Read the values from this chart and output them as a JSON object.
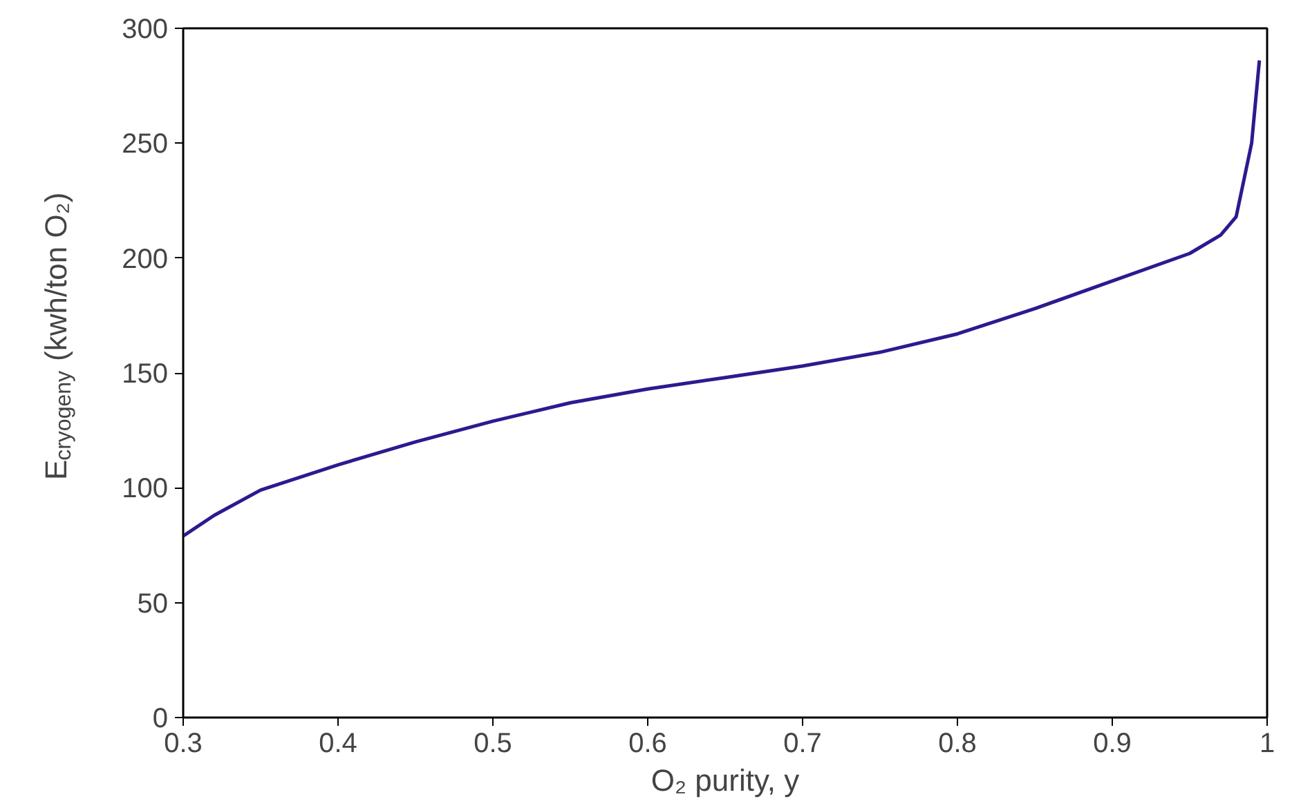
{
  "chart_data": {
    "type": "line",
    "xlabel": "O₂ purity, y",
    "ylabel": "E$_{cryogeny}$ (kwh/ton O₂)",
    "x": [
      0.3,
      0.32,
      0.35,
      0.4,
      0.45,
      0.5,
      0.55,
      0.6,
      0.65,
      0.7,
      0.75,
      0.8,
      0.85,
      0.9,
      0.95,
      0.97,
      0.98,
      0.99,
      0.995
    ],
    "series": [
      {
        "color": "#2b1b8f",
        "values": [
          79,
          88,
          99,
          110,
          120,
          129,
          137,
          143,
          148,
          153,
          159,
          167,
          178,
          190,
          202,
          210,
          218,
          250,
          286
        ]
      }
    ],
    "xlim": [
      0.3,
      1
    ],
    "ylim": [
      0,
      300
    ],
    "xticks": [
      0.3,
      0.4,
      0.5,
      0.6,
      0.7,
      0.8,
      0.9,
      1
    ],
    "yticks": [
      0,
      50,
      100,
      150,
      200,
      250,
      300
    ],
    "grid": false,
    "marker": "none",
    "line_style": "solid"
  }
}
